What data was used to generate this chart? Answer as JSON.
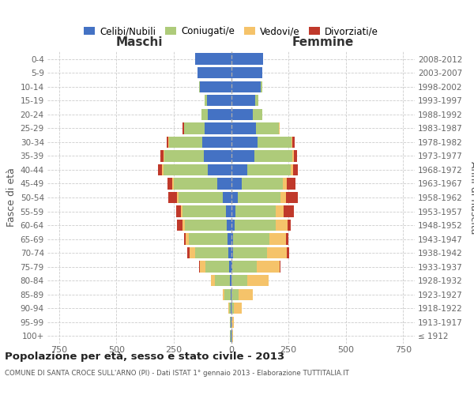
{
  "age_groups": [
    "100+",
    "95-99",
    "90-94",
    "85-89",
    "80-84",
    "75-79",
    "70-74",
    "65-69",
    "60-64",
    "55-59",
    "50-54",
    "45-49",
    "40-44",
    "35-39",
    "30-34",
    "25-29",
    "20-24",
    "15-19",
    "10-14",
    "5-9",
    "0-4"
  ],
  "birth_years": [
    "≤ 1912",
    "1913-1917",
    "1918-1922",
    "1923-1927",
    "1928-1932",
    "1933-1937",
    "1938-1942",
    "1943-1947",
    "1948-1952",
    "1953-1957",
    "1958-1962",
    "1963-1967",
    "1968-1972",
    "1973-1977",
    "1978-1982",
    "1983-1987",
    "1988-1992",
    "1993-1997",
    "1998-2002",
    "2003-2007",
    "2008-2012"
  ],
  "male_celibi": [
    2,
    1,
    2,
    3,
    5,
    8,
    12,
    15,
    18,
    22,
    35,
    60,
    100,
    120,
    125,
    115,
    100,
    105,
    135,
    145,
    155
  ],
  "male_coniugati": [
    2,
    3,
    8,
    25,
    65,
    105,
    145,
    170,
    185,
    190,
    195,
    190,
    195,
    170,
    145,
    90,
    28,
    10,
    4,
    2,
    0
  ],
  "male_vedovi": [
    0,
    0,
    2,
    8,
    18,
    22,
    25,
    12,
    10,
    6,
    5,
    5,
    5,
    3,
    2,
    1,
    0,
    0,
    0,
    0,
    0
  ],
  "male_divorziati": [
    0,
    0,
    0,
    0,
    0,
    5,
    8,
    8,
    22,
    22,
    38,
    22,
    18,
    15,
    10,
    5,
    2,
    0,
    0,
    0,
    0
  ],
  "female_nubili": [
    2,
    1,
    2,
    3,
    3,
    5,
    8,
    10,
    14,
    18,
    28,
    48,
    72,
    100,
    115,
    110,
    95,
    105,
    130,
    135,
    140
  ],
  "female_coniugate": [
    2,
    2,
    10,
    28,
    68,
    108,
    148,
    158,
    182,
    178,
    188,
    178,
    188,
    168,
    148,
    98,
    40,
    15,
    5,
    2,
    0
  ],
  "female_vedove": [
    3,
    8,
    35,
    62,
    92,
    98,
    88,
    72,
    50,
    32,
    22,
    15,
    10,
    5,
    5,
    2,
    0,
    0,
    0,
    0,
    0
  ],
  "female_divorziate": [
    0,
    0,
    0,
    0,
    2,
    5,
    8,
    10,
    15,
    45,
    52,
    38,
    22,
    15,
    8,
    3,
    1,
    0,
    0,
    0,
    0
  ],
  "xlim": 800,
  "color_celibi": "#4472C4",
  "color_coniugati": "#AECB7A",
  "color_vedovi": "#F5C36A",
  "color_divorziati": "#C0392B",
  "bg_color": "#FFFFFF",
  "grid_color": "#DDDDDD",
  "title_main": "Popolazione per età, sesso e stato civile - 2013",
  "title_sub": "COMUNE DI SANTA CROCE SULL'ARNO (PI) - Dati ISTAT 1° gennaio 2013 - Elaborazione TUTTITALIA.IT",
  "label_maschi": "Maschi",
  "label_femmine": "Femmine",
  "label_fasciaeta": "Fasce di età",
  "label_anninascita": "Anni di nascita",
  "legend_celibi": "Celibi/Nubili",
  "legend_coniugati": "Coniugati/e",
  "legend_vedovi": "Vedovi/e",
  "legend_divorziati": "Divorziati/e"
}
